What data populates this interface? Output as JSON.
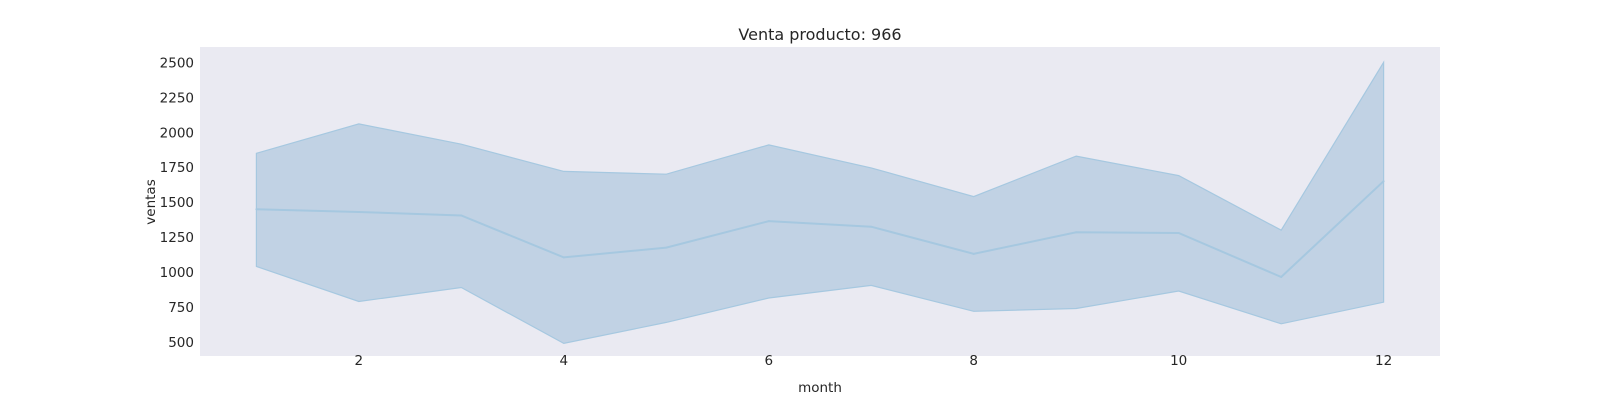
{
  "chart_data": {
    "type": "line",
    "title": "Venta producto: 966",
    "xlabel": "month",
    "ylabel": "ventas",
    "x": [
      1,
      2,
      3,
      4,
      5,
      6,
      7,
      8,
      9,
      10,
      11,
      12
    ],
    "series": [
      {
        "values": [
          1450,
          1430,
          1405,
          1105,
          1175,
          1365,
          1325,
          1130,
          1285,
          1280,
          965,
          1650
        ]
      }
    ],
    "confidence_interval": {
      "lower": [
        1040,
        790,
        890,
        490,
        640,
        815,
        905,
        720,
        740,
        865,
        630,
        785
      ],
      "upper": [
        1850,
        2060,
        1915,
        1720,
        1700,
        1910,
        1745,
        1540,
        1830,
        1690,
        1300,
        2500
      ]
    },
    "xticks": [
      2,
      4,
      6,
      8,
      10,
      12
    ],
    "yticks": [
      500,
      750,
      1000,
      1250,
      1500,
      1750,
      2000,
      2250,
      2500
    ],
    "xlim": [
      0.45,
      12.55
    ],
    "ylim": [
      400,
      2610
    ],
    "grid": false,
    "colors": {
      "background": "#eaeaf2",
      "line": "#a6c8e0",
      "band": "#c1d2e4",
      "text": "#262626"
    }
  }
}
